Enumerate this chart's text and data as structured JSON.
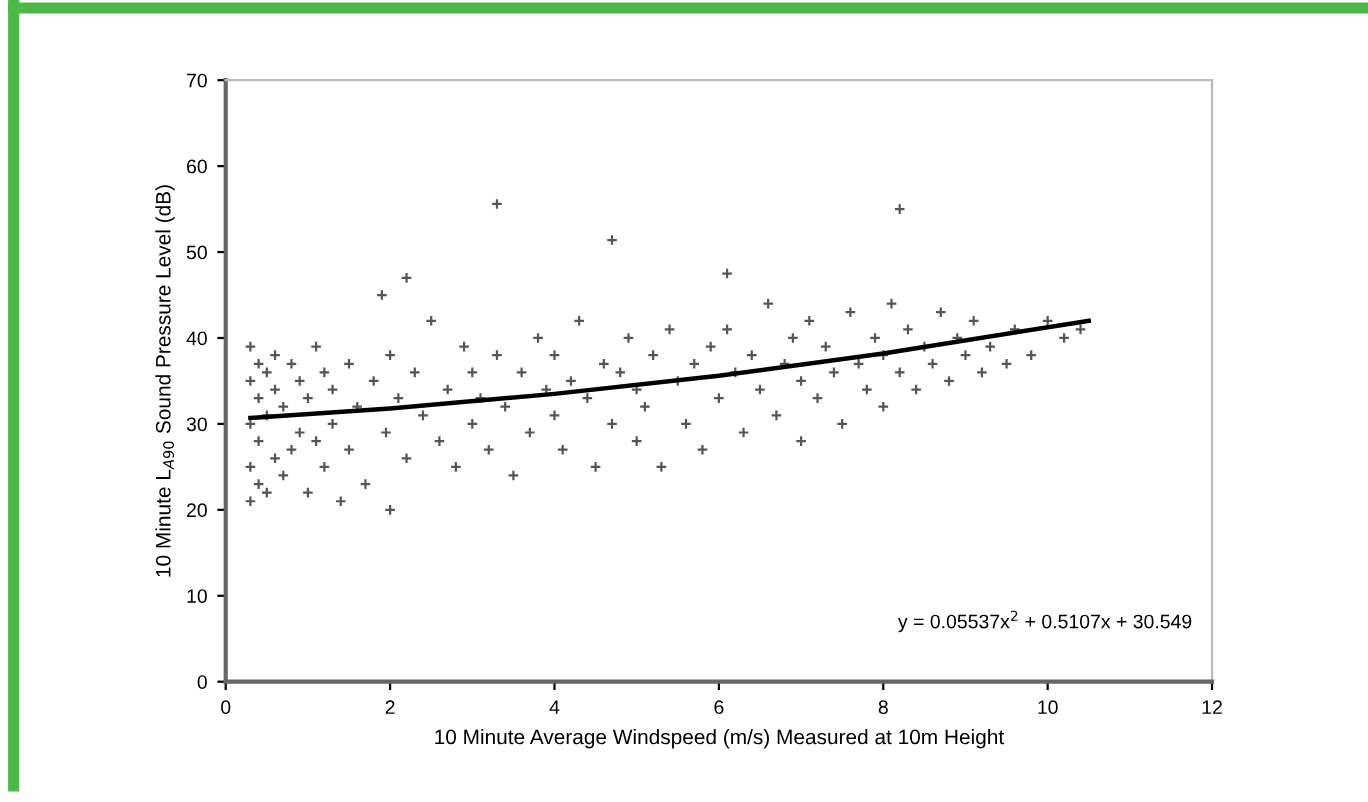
{
  "chart_data": {
    "type": "scatter",
    "xlabel": "10 Minute Average Windspeed (m/s) Measured at 10m Height",
    "ylabel": "10 Minute L$_{A90}$ Sound Pressure Level (dB)",
    "xlim": [
      0,
      12
    ],
    "xticks": [
      0,
      2,
      4,
      6,
      8,
      10,
      12
    ],
    "ylim": [
      0,
      70
    ],
    "yticks": [
      0,
      10,
      20,
      30,
      40,
      50,
      60,
      70
    ],
    "grid": false,
    "legend": false,
    "annotations": [
      "y = 0.05537x$^{2}$ + 0.5107x + 30.549"
    ],
    "series": [
      {
        "color": "#555555",
        "marker": "cross",
        "x": [
          0.3,
          0.3,
          0.3,
          0.3,
          0.3,
          0.4,
          0.4,
          0.4,
          0.4,
          0.5,
          0.5,
          0.5,
          0.6,
          0.6,
          0.6,
          0.7,
          0.7,
          0.8,
          0.8,
          0.9,
          0.9,
          1.0,
          1.0,
          1.1,
          1.1,
          1.2,
          1.2,
          1.3,
          1.3,
          1.4,
          1.5,
          1.5,
          1.6,
          1.7,
          1.8,
          1.9,
          1.95,
          2.0,
          2.0,
          2.1,
          2.2,
          2.2,
          2.3,
          2.4,
          2.5,
          2.6,
          2.7,
          2.8,
          2.9,
          3.0,
          3.0,
          3.1,
          3.2,
          3.3,
          3.3,
          3.4,
          3.5,
          3.6,
          3.7,
          3.8,
          3.9,
          4.0,
          4.0,
          4.1,
          4.2,
          4.3,
          4.4,
          4.5,
          4.6,
          4.7,
          4.7,
          4.8,
          4.9,
          5.0,
          5.0,
          5.1,
          5.2,
          5.3,
          5.4,
          5.5,
          5.6,
          5.7,
          5.8,
          5.9,
          6.0,
          6.1,
          6.1,
          6.2,
          6.3,
          6.4,
          6.5,
          6.6,
          6.7,
          6.8,
          6.9,
          7.0,
          7.0,
          7.1,
          7.2,
          7.3,
          7.4,
          7.5,
          7.6,
          7.7,
          7.8,
          7.9,
          8.0,
          8.0,
          8.1,
          8.2,
          8.2,
          8.3,
          8.4,
          8.5,
          8.6,
          8.7,
          8.8,
          8.9,
          9.0,
          9.1,
          9.2,
          9.3,
          9.5,
          9.6,
          9.8,
          10.0,
          10.2,
          10.4
        ],
        "values": [
          21,
          25,
          30,
          35,
          39,
          23,
          28,
          33,
          37,
          22,
          31,
          36,
          26,
          34,
          38,
          24,
          32,
          27,
          37,
          29,
          35,
          22,
          33,
          28,
          39,
          25,
          36,
          30,
          34,
          21,
          27,
          37,
          32,
          23,
          35,
          45,
          29,
          20,
          38,
          33,
          47,
          26,
          36,
          31,
          42,
          28,
          34,
          25,
          39,
          30,
          36,
          33,
          27,
          55.6,
          38,
          32,
          24,
          36,
          29,
          40,
          34,
          31,
          38,
          27,
          35,
          42,
          33,
          25,
          37,
          51.4,
          30,
          36,
          40,
          28,
          34,
          32,
          38,
          25,
          41,
          35,
          30,
          37,
          27,
          39,
          33,
          47.5,
          41,
          36,
          29,
          38,
          34,
          44,
          31,
          37,
          40,
          35,
          28,
          42,
          33,
          39,
          36,
          30,
          43,
          37,
          34,
          40,
          38,
          32,
          44,
          36,
          55,
          41,
          34,
          39,
          37,
          43,
          35,
          40,
          38,
          42,
          36,
          39,
          37,
          41,
          38,
          42,
          40,
          41
        ]
      },
      {
        "type": "line",
        "color": "#000000",
        "marker": "none",
        "line_style": "solid",
        "x": [
          0.3,
          2,
          4,
          6,
          8,
          10.5
        ],
        "values": [
          30.7,
          31.8,
          33.5,
          35.6,
          38.2,
          42.0
        ]
      }
    ]
  }
}
